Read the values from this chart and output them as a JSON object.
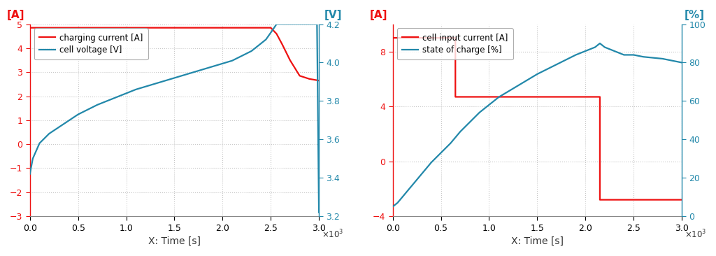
{
  "chart1": {
    "xlabel": "X: Time [s]",
    "left_ylabel": "[A]",
    "right_ylabel": "[V]",
    "left_color": "#ee1111",
    "right_color": "#2288aa",
    "legend1_label": "charging current [A]",
    "legend2_label": "cell voltage [V]",
    "xlim": [
      0,
      3000
    ],
    "left_ylim": [
      -3,
      5
    ],
    "right_ylim": [
      3.2,
      4.2
    ],
    "left_yticks": [
      -3,
      -2,
      -1,
      0,
      1,
      2,
      3,
      4,
      5
    ],
    "right_yticks": [
      3.2,
      3.4,
      3.6,
      3.8,
      4.0,
      4.2
    ],
    "xticks": [
      0,
      500,
      1000,
      1500,
      2000,
      2500,
      3000
    ],
    "current_x": [
      0,
      1,
      50,
      2500,
      2560,
      2620,
      2700,
      2800,
      2900,
      3000
    ],
    "current_y": [
      -0.6,
      4.85,
      4.85,
      4.85,
      4.6,
      4.15,
      3.5,
      2.85,
      2.72,
      2.65
    ],
    "voltage_x": [
      0,
      30,
      100,
      200,
      350,
      500,
      700,
      900,
      1100,
      1300,
      1500,
      1700,
      1900,
      2100,
      2300,
      2450,
      2520,
      2560,
      2600,
      2700,
      2800,
      2900,
      2980,
      3000
    ],
    "voltage_y": [
      3.42,
      3.5,
      3.58,
      3.63,
      3.68,
      3.73,
      3.78,
      3.82,
      3.86,
      3.89,
      3.92,
      3.95,
      3.98,
      4.01,
      4.06,
      4.12,
      4.17,
      4.2,
      4.2,
      4.2,
      4.2,
      4.2,
      4.2,
      3.22
    ]
  },
  "chart2": {
    "xlabel": "X: Time [s]",
    "left_ylabel": "[A]",
    "right_ylabel": "[%]",
    "left_color": "#ee1111",
    "right_color": "#2288aa",
    "legend1_label": "cell input current [A]",
    "legend2_label": "state of charge [%]",
    "xlim": [
      0,
      3000
    ],
    "left_ylim": [
      -4,
      10
    ],
    "right_ylim": [
      0,
      100
    ],
    "left_yticks": [
      -4,
      0,
      4,
      8
    ],
    "right_yticks": [
      0,
      20,
      40,
      60,
      80,
      100
    ],
    "xticks": [
      0,
      500,
      1000,
      1500,
      2000,
      2500,
      3000
    ],
    "current_x": [
      0,
      1,
      650,
      650.1,
      2150,
      2150.1,
      3000
    ],
    "current_y": [
      -2.9,
      9.0,
      9.0,
      4.7,
      4.7,
      -2.8,
      -2.8
    ],
    "soc_x": [
      0,
      50,
      200,
      400,
      600,
      700,
      900,
      1100,
      1300,
      1500,
      1700,
      1900,
      2100,
      2150,
      2200,
      2400,
      2500,
      2600,
      2800,
      3000
    ],
    "soc_y": [
      5,
      7,
      16,
      28,
      38,
      44,
      54,
      62,
      68,
      74,
      79,
      84,
      88,
      90,
      88,
      84,
      84,
      83,
      82,
      80
    ]
  },
  "background_color": "#ffffff",
  "grid_color": "#c8c8c8",
  "grid_style": ":"
}
